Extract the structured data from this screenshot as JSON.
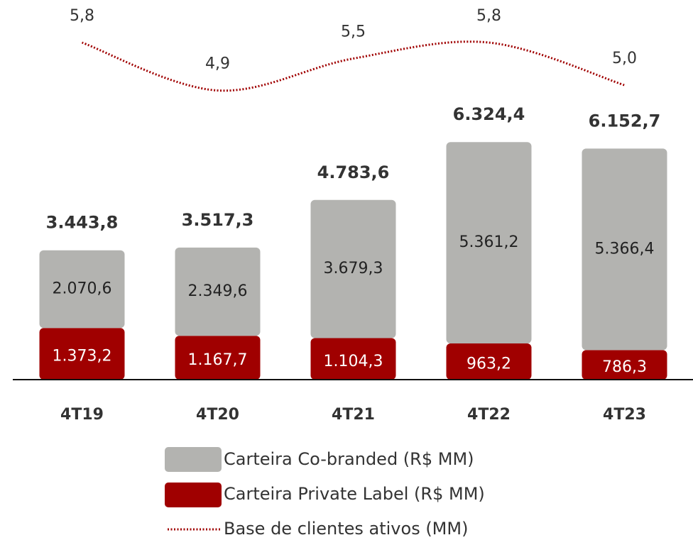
{
  "chart_data": {
    "type": "bar",
    "stacked": true,
    "categories": [
      "4T19",
      "4T20",
      "4T21",
      "4T22",
      "4T23"
    ],
    "series": [
      {
        "name": "Carteira Private Label (R$ MM)",
        "color": "#a00000",
        "values": [
          1373.2,
          1167.7,
          1104.3,
          963.2,
          786.3
        ],
        "value_labels": [
          "1.373,2",
          "1.167,7",
          "1.104,3",
          "963,2",
          "786,3"
        ]
      },
      {
        "name": "Carteira Co-branded (R$ MM)",
        "color": "#b3b3b0",
        "values": [
          2070.6,
          2349.6,
          3679.3,
          5361.2,
          5366.4
        ],
        "value_labels": [
          "2.070,6",
          "2.349,6",
          "3.679,3",
          "5.361,2",
          "5.366,4"
        ]
      },
      {
        "name": "Base de clientes ativos (MM)",
        "color": "#a00000",
        "type": "line",
        "axis": "y2",
        "dotted": true,
        "values": [
          5.8,
          4.9,
          5.5,
          5.8,
          5.0
        ],
        "value_labels": [
          "5,8",
          "4,9",
          "5,5",
          "5,8",
          "5,0"
        ]
      }
    ],
    "totals": [
      3443.8,
      3517.3,
      4783.6,
      6324.4,
      6152.7
    ],
    "total_labels": [
      "3.443,8",
      "3.517,3",
      "4.783,6",
      "6.324,4",
      "6.152,7"
    ],
    "ylim": [
      0,
      7500
    ],
    "y2lim": [
      4.2,
      6.2
    ]
  }
}
